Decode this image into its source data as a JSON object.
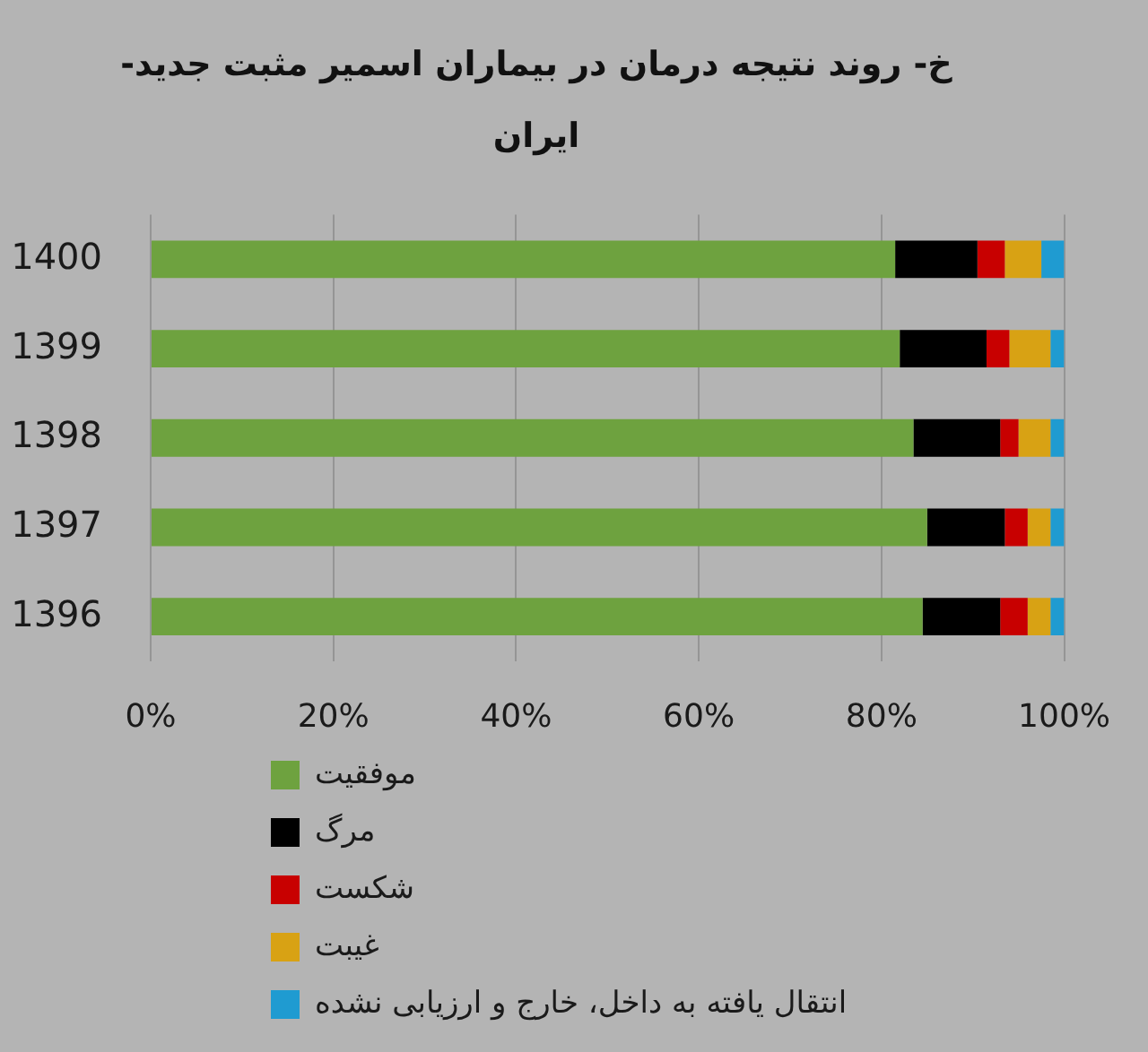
{
  "chart_data": {
    "type": "bar",
    "orientation": "horizontal",
    "stacked": true,
    "title": "خ- روند نتیجه درمان در بیماران اسمیر مثبت جدید- ایران",
    "categories": [
      "1400",
      "1399",
      "1398",
      "1397",
      "1396"
    ],
    "series": [
      {
        "name": "موفقیت",
        "color": "#6ea23f",
        "values": [
          81.5,
          82,
          83.5,
          85,
          84.5
        ]
      },
      {
        "name": "مرگ",
        "color": "#000000",
        "values": [
          9,
          9.5,
          9.5,
          8.5,
          8.5
        ]
      },
      {
        "name": "شکست",
        "color": "#c80000",
        "values": [
          3,
          2.5,
          2,
          2.5,
          3
        ]
      },
      {
        "name": "غیبت",
        "color": "#d8a214",
        "values": [
          4,
          4.5,
          3.5,
          2.5,
          2.5
        ]
      },
      {
        "name": "انتقال یافته به داخل، خارج و ارزیابی نشده",
        "color": "#1f9bd1",
        "values": [
          2.5,
          1.5,
          1.5,
          1.5,
          1.5
        ]
      }
    ],
    "xlim": [
      0,
      100
    ],
    "xticks": [
      {
        "value": 0,
        "label": "0%"
      },
      {
        "value": 20,
        "label": "20%"
      },
      {
        "value": 40,
        "label": "40%"
      },
      {
        "value": 60,
        "label": "60%"
      },
      {
        "value": 80,
        "label": "80%"
      },
      {
        "value": 100,
        "label": "100%"
      }
    ],
    "grid": "x",
    "legend": "bottom left"
  }
}
